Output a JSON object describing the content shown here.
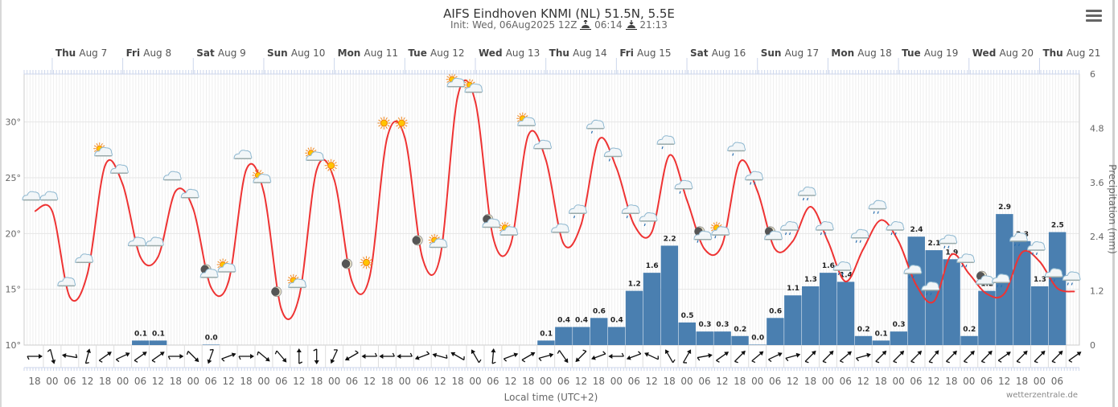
{
  "header": {
    "title": "AIFS Eindhoven KNMI (NL) 51.5N, 5.5E",
    "init_label": "Init: Wed, 06Aug2025 12Z",
    "sunrise_icon": "sunrise-icon",
    "sunrise": "06:14",
    "sunset_icon": "sunset-icon",
    "sunset": "21:13",
    "menu_icon": "hamburger-menu-icon"
  },
  "credit": "wetterzentrale.de",
  "colors": {
    "temperature_line": "#ee3333",
    "precip_bar": "#4a7fb0",
    "grid": "#e6e6e6",
    "axis": "#ccd6eb"
  },
  "chart_data": {
    "type": "line+bar",
    "title": "AIFS Eindhoven KNMI (NL) 51.5N, 5.5E",
    "subtitle": "Init: Wed, 06Aug2025 12Z",
    "xlabel": "Local time (UTC+2)",
    "ylabel_left": "",
    "ylabel_right": "Precipitation (mm)",
    "grid": true,
    "legend": "none",
    "x_start": "Aug 6 18:00",
    "x_step_hours": 6,
    "day_labels": [
      {
        "dow": "Thu",
        "date": "Aug 7"
      },
      {
        "dow": "Fri",
        "date": "Aug 8"
      },
      {
        "dow": "Sat",
        "date": "Aug 9"
      },
      {
        "dow": "Sun",
        "date": "Aug 10"
      },
      {
        "dow": "Mon",
        "date": "Aug 11"
      },
      {
        "dow": "Tue",
        "date": "Aug 12"
      },
      {
        "dow": "Wed",
        "date": "Aug 13"
      },
      {
        "dow": "Thu",
        "date": "Aug 14"
      },
      {
        "dow": "Fri",
        "date": "Aug 15"
      },
      {
        "dow": "Sat",
        "date": "Aug 16"
      },
      {
        "dow": "Sun",
        "date": "Aug 17"
      },
      {
        "dow": "Mon",
        "date": "Aug 18"
      },
      {
        "dow": "Tue",
        "date": "Aug 19"
      },
      {
        "dow": "Wed",
        "date": "Aug 20"
      },
      {
        "dow": "Thu",
        "date": "Aug 21"
      }
    ],
    "hour_ticks": [
      "18",
      "00",
      "06",
      "12",
      "18",
      "00",
      "06",
      "12",
      "18",
      "00",
      "06",
      "12",
      "18",
      "00",
      "06",
      "12",
      "18",
      "00",
      "06",
      "12",
      "18",
      "00",
      "06",
      "12",
      "18",
      "00",
      "06",
      "12",
      "18",
      "00",
      "06",
      "12",
      "18",
      "00",
      "06",
      "12",
      "18",
      "00",
      "06",
      "12",
      "18",
      "00",
      "06",
      "12",
      "18",
      "00",
      "06",
      "12",
      "18",
      "00",
      "06",
      "12",
      "18",
      "00",
      "06",
      "12",
      "18",
      "00",
      "06"
    ],
    "y_left": {
      "ticks": [
        "10°",
        "15°",
        "20°",
        "25°",
        "30°"
      ],
      "range": [
        10,
        34.3
      ]
    },
    "y_right": {
      "ticks": [
        "0",
        "1.2",
        "2.4",
        "3.6",
        "4.8",
        "6"
      ],
      "range": [
        0,
        6
      ]
    },
    "series": [
      {
        "name": "Temperature (°C)",
        "type": "line",
        "values": [
          22.0,
          22.0,
          14.3,
          16.4,
          26.1,
          24.4,
          17.9,
          17.9,
          23.8,
          22.2,
          15.2,
          15.7,
          25.7,
          23.7,
          13.2,
          14.3,
          25.7,
          24.8,
          15.7,
          16.1,
          28.6,
          28.6,
          17.8,
          17.9,
          32.3,
          31.8,
          19.7,
          19.0,
          28.8,
          26.6,
          19.1,
          20.8,
          28.4,
          25.9,
          20.8,
          20.1,
          27.0,
          23.0,
          18.6,
          19.0,
          26.4,
          23.8,
          18.6,
          19.3,
          22.4,
          19.3,
          15.7,
          18.6,
          21.2,
          19.3,
          15.4,
          13.9,
          18.1,
          16.4,
          14.6,
          14.6,
          18.3,
          17.5,
          15.1,
          14.8
        ]
      },
      {
        "name": "Precipitation (mm)",
        "type": "bar",
        "bars": [
          {
            "slot": 6,
            "value": 0.1,
            "label": "0.1"
          },
          {
            "slot": 7,
            "value": 0.1,
            "label": "0.1"
          },
          {
            "slot": 10,
            "value": 0.01,
            "label": "0.0"
          },
          {
            "slot": 29,
            "value": 0.1,
            "label": "0.1"
          },
          {
            "slot": 30,
            "value": 0.4,
            "label": "0.4"
          },
          {
            "slot": 31,
            "value": 0.4,
            "label": "0.4"
          },
          {
            "slot": 32,
            "value": 0.6,
            "label": "0.6"
          },
          {
            "slot": 33,
            "value": 0.4,
            "label": "0.4"
          },
          {
            "slot": 34,
            "value": 1.2,
            "label": "1.2"
          },
          {
            "slot": 35,
            "value": 1.6,
            "label": "1.6"
          },
          {
            "slot": 36,
            "value": 2.2,
            "label": "2.2"
          },
          {
            "slot": 37,
            "value": 0.5,
            "label": "0.5"
          },
          {
            "slot": 38,
            "value": 0.3,
            "label": "0.3"
          },
          {
            "slot": 39,
            "value": 0.3,
            "label": "0.3"
          },
          {
            "slot": 40,
            "value": 0.2,
            "label": "0.2"
          },
          {
            "slot": 41,
            "value": 0.01,
            "label": "0.0"
          },
          {
            "slot": 42,
            "value": 0.6,
            "label": "0.6"
          },
          {
            "slot": 43,
            "value": 1.1,
            "label": "1.1"
          },
          {
            "slot": 44,
            "value": 1.3,
            "label": "1.3"
          },
          {
            "slot": 45,
            "value": 1.6,
            "label": "1.6"
          },
          {
            "slot": 46,
            "value": 1.4,
            "label": "1.4"
          },
          {
            "slot": 47,
            "value": 0.2,
            "label": "0.2"
          },
          {
            "slot": 48,
            "value": 0.1,
            "label": "0.1"
          },
          {
            "slot": 49,
            "value": 0.3,
            "label": "0.3"
          },
          {
            "slot": 50,
            "value": 2.4,
            "label": "2.4"
          },
          {
            "slot": 51,
            "value": 2.1,
            "label": "2.1"
          },
          {
            "slot": 52,
            "value": 1.9,
            "label": "1.9"
          },
          {
            "slot": 53,
            "value": 0.2,
            "label": "0.2"
          },
          {
            "slot": 54,
            "value": 1.2,
            "label": "1.2"
          },
          {
            "slot": 55,
            "value": 2.9,
            "label": "2.9"
          },
          {
            "slot": 56,
            "value": 2.3,
            "label": "2.3"
          },
          {
            "slot": 57,
            "value": 1.3,
            "label": "1.3"
          },
          {
            "slot": 58,
            "value": 2.5,
            "label": "2.5"
          }
        ]
      }
    ],
    "weather_icons": [
      "cloud",
      "cloud",
      "cloud",
      "cloud",
      "sun-cloud",
      "cloud",
      "cloud",
      "cloud",
      "cloud",
      "cloud",
      "moon-cloud",
      "sun-cloud",
      "cloud",
      "sun-cloud",
      "moon",
      "sun-cloud",
      "sun-cloud",
      "sun",
      "moon",
      "sun",
      "sun",
      "sun",
      "moon",
      "sun-cloud",
      "sun-cloud",
      "sun-cloud",
      "moon-cloud",
      "sun-cloud",
      "sun-cloud",
      "cloud",
      "cloud",
      "cloud-rain",
      "cloud-rain",
      "cloud-rain",
      "cloud-rain",
      "cloud-rain",
      "cloud-rain",
      "cloud-rain",
      "moon-cloud-rain",
      "sun-cloud-rain",
      "cloud-rain",
      "cloud-rain",
      "moon-cloud",
      "cloud-rain",
      "cloud-rain",
      "cloud-rain",
      "cloud-rain",
      "cloud-rain",
      "cloud-rain",
      "cloud-rain",
      "cloud-rain",
      "cloud-rain",
      "cloud-rain",
      "cloud-rain",
      "moon-cloud",
      "cloud-rain",
      "cloud-rain",
      "cloud-rain",
      "cloud-rain",
      "cloud-rain"
    ],
    "wind_direction_to_deg": [
      90,
      165,
      280,
      15,
      55,
      65,
      55,
      55,
      90,
      135,
      200,
      70,
      90,
      130,
      140,
      0,
      180,
      205,
      240,
      270,
      270,
      270,
      250,
      285,
      300,
      330,
      5,
      70,
      60,
      75,
      145,
      225,
      250,
      270,
      250,
      295,
      330,
      30,
      80,
      55,
      45,
      50,
      65,
      75,
      45,
      45,
      50,
      75,
      45,
      45,
      45,
      40,
      45,
      45,
      45,
      55,
      45,
      45,
      45,
      55
    ]
  }
}
